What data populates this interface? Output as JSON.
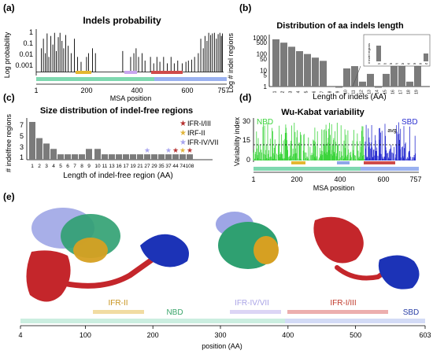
{
  "panels": {
    "a": {
      "label": "(a)",
      "title": "Indels probability",
      "ylabel": "Log probability",
      "xlabel": "MSA position",
      "yticks": [
        "1",
        "0.1",
        "0.01",
        "0.001"
      ],
      "xticks": [
        "1",
        "200",
        "400",
        "600",
        "757"
      ]
    },
    "b": {
      "label": "(b)",
      "title": "Distribution of aa indels length",
      "ylabel": "Log # indel regions",
      "xlabel": "Length of indels (AA)",
      "yticks": [
        "1000",
        "500",
        "100",
        "50",
        "10",
        "5",
        "1"
      ],
      "inset_ylabel": "# indel regions"
    },
    "c": {
      "label": "(c)",
      "title": "Size distribution of indel-free regions",
      "ylabel": "# indelfree regions",
      "xlabel": "Length of indel-free region (AA)",
      "yticks": [
        "7",
        "5",
        "3",
        "1"
      ],
      "legend": [
        {
          "text": "IFR-I/III",
          "color": "#b5302f"
        },
        {
          "text": "IRF-II",
          "color": "#e1b43a"
        },
        {
          "text": "IFR-IV/VII",
          "color": "#a7a4ee"
        }
      ]
    },
    "d": {
      "label": "(d)",
      "title": "Wu-Kabat variability",
      "ylabel": "Variability index",
      "xlabel": "MSA position",
      "yticks": [
        "30",
        "15",
        "0"
      ],
      "xticks": [
        "1",
        "200",
        "400",
        "600",
        "757"
      ],
      "nbd": "NBD",
      "sbd": "SBD",
      "avg": "avg"
    },
    "e": {
      "label": "(e)",
      "xlabel": "position (AA)",
      "xticks": [
        "4",
        "100",
        "200",
        "300",
        "400",
        "500",
        "603"
      ],
      "domains": [
        {
          "text": "IFR-II",
          "color": "#c8941f"
        },
        {
          "text": "NBD",
          "color": "#3aa56a"
        },
        {
          "text": "IFR-IV/VII",
          "color": "#a9a3e6"
        },
        {
          "text": "IFR-I/III",
          "color": "#c0392b"
        },
        {
          "text": "SBD",
          "color": "#2a3fa7"
        }
      ]
    }
  },
  "chart_data": [
    {
      "type": "line",
      "title": "Indels probability",
      "xlabel": "MSA position",
      "ylabel": "Log probability",
      "ylim": [
        0.0005,
        1
      ],
      "xlim": [
        1,
        757
      ],
      "log_y": true,
      "peaks_x": [
        22,
        30,
        38,
        45,
        52,
        60,
        68,
        75,
        82,
        90,
        97,
        105,
        112,
        120,
        130,
        142,
        155,
        168,
        182,
        204,
        212,
        228,
        240,
        350,
        382,
        395,
        404,
        414,
        428,
        440,
        462,
        475,
        488,
        500,
        515,
        530,
        545,
        558,
        572,
        590,
        605,
        615,
        628,
        640,
        655,
        665,
        675,
        682,
        690,
        697,
        705,
        712,
        720,
        728,
        735,
        742,
        748,
        752
      ],
      "peaks_y": [
        0.05,
        0.3,
        0.02,
        0.8,
        0.01,
        0.5,
        0.1,
        0.9,
        0.03,
        0.4,
        0.9,
        0.2,
        0.05,
        0.6,
        0.08,
        0.02,
        0.3,
        0.01,
        0.004,
        0.01,
        0.02,
        0.05,
        0.02,
        0.03,
        0.01,
        0.02,
        0.05,
        0.01,
        0.02,
        0.005,
        0.01,
        0.003,
        0.01,
        0.004,
        0.01,
        0.003,
        0.01,
        0.003,
        0.005,
        0.003,
        0.004,
        0.005,
        0.006,
        0.01,
        0.02,
        0.3,
        0.05,
        0.5,
        0.2,
        0.9,
        0.6,
        0.8,
        0.9,
        0.3,
        0.7,
        0.9,
        0.5,
        0.8
      ]
    },
    {
      "type": "bar",
      "title": "Distribution of aa indels length",
      "xlabel": "Length of indels (AA)",
      "ylabel": "Log # indel regions",
      "log_y": true,
      "ylim": [
        1,
        1000
      ],
      "categories": [
        "1",
        "2",
        "3",
        "4",
        "5",
        "6",
        "7",
        "8",
        "9",
        "10",
        "11",
        "12",
        "13",
        "14",
        "15",
        "16",
        "17",
        "18",
        "19"
      ],
      "values": [
        800,
        500,
        280,
        150,
        100,
        60,
        38,
        0,
        1,
        13,
        18,
        2,
        6,
        1,
        6,
        30,
        28,
        2,
        40
      ],
      "inset": {
        "categories": [
          "21",
          "23",
          "25",
          "27",
          "29",
          "32",
          "35",
          "36",
          "54"
        ],
        "values": [
          2,
          0,
          0,
          0,
          0,
          0,
          0,
          0,
          1
        ]
      }
    },
    {
      "type": "bar",
      "title": "Size distribution of indel-free regions",
      "xlabel": "Length of indel-free region (AA)",
      "ylabel": "# indelfree regions",
      "ylim": [
        0,
        7
      ],
      "categories": [
        "1",
        "2",
        "3",
        "4",
        "5",
        "6",
        "7",
        "8",
        "9",
        "10",
        "11",
        "13",
        "16",
        "17",
        "19",
        "21",
        "27",
        "29",
        "35",
        "37",
        "44",
        "74",
        "108"
      ],
      "values": [
        7,
        4,
        3,
        2,
        1,
        1,
        1,
        1,
        2,
        2,
        1,
        1,
        1,
        1,
        1,
        1,
        1,
        1,
        1,
        1,
        1,
        1,
        1
      ],
      "stars": [
        {
          "category": "27",
          "series": "IFR-IV/VII"
        },
        {
          "category": "37",
          "series": "IFR-IV/VII"
        },
        {
          "category": "44",
          "series": "IFR-I/III"
        },
        {
          "category": "74",
          "series": "IRF-II"
        },
        {
          "category": "108",
          "series": "IFR-I/III"
        }
      ]
    },
    {
      "type": "line",
      "title": "Wu-Kabat variability",
      "xlabel": "MSA position",
      "ylabel": "Variability index",
      "ylim": [
        0,
        35
      ],
      "xlim": [
        1,
        757
      ],
      "avg": 10,
      "series": [
        {
          "name": "NBD",
          "x_range": [
            1,
            520
          ],
          "color": "#3bd43b"
        },
        {
          "name": "SBD",
          "x_range": [
            520,
            757
          ],
          "color": "#2a2fd0"
        }
      ]
    }
  ]
}
